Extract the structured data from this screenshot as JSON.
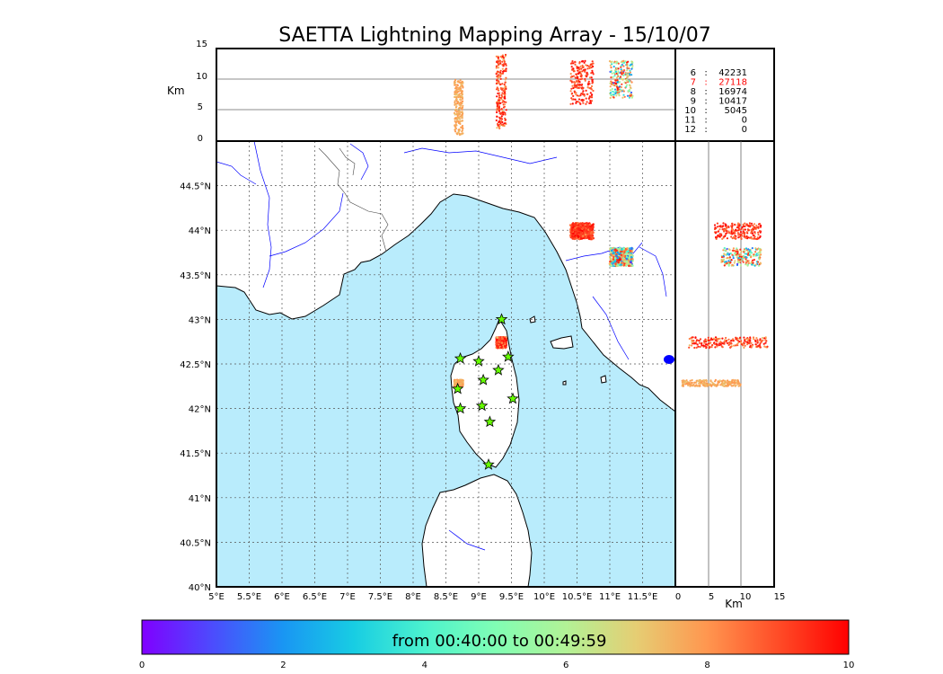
{
  "title": "SAETTA Lightning Mapping Array - 15/10/07",
  "altitude_panel": {
    "ylabel": "Km",
    "yticks": [
      "0",
      "5",
      "10",
      "15"
    ]
  },
  "side_panel": {
    "xlabel": "Km",
    "xticks": [
      "0",
      "5",
      "10",
      "15"
    ]
  },
  "map": {
    "lon_ticks": [
      "5°E",
      "5.5°E",
      "6°E",
      "6.5°E",
      "7°E",
      "7.5°E",
      "8°E",
      "8.5°E",
      "9°E",
      "9.5°E",
      "10°E",
      "10.5°E",
      "11°E",
      "11.5°E"
    ],
    "lat_ticks": [
      "40°N",
      "40.5°N",
      "41°N",
      "41.5°N",
      "42°N",
      "42.5°N",
      "43°N",
      "43.5°N",
      "44°N",
      "44.5°N"
    ],
    "lon_range": [
      5,
      12
    ],
    "lat_range": [
      40,
      45
    ],
    "sea_color": "#b9ecfc",
    "coast_color": "#000000",
    "river_color": "#0000ff",
    "stations": [
      {
        "lon": 9.35,
        "lat": 43.0
      },
      {
        "lon": 8.72,
        "lat": 42.56
      },
      {
        "lon": 9.0,
        "lat": 42.53
      },
      {
        "lon": 9.45,
        "lat": 42.58
      },
      {
        "lon": 9.3,
        "lat": 42.43
      },
      {
        "lon": 9.07,
        "lat": 42.32
      },
      {
        "lon": 8.68,
        "lat": 42.22
      },
      {
        "lon": 9.52,
        "lat": 42.11
      },
      {
        "lon": 9.05,
        "lat": 42.03
      },
      {
        "lon": 8.72,
        "lat": 42.0
      },
      {
        "lon": 9.17,
        "lat": 41.85
      },
      {
        "lon": 9.15,
        "lat": 41.37
      }
    ]
  },
  "counts": [
    {
      "label": "6",
      "value": "42231",
      "color": "#000000"
    },
    {
      "label": "7",
      "value": "27118",
      "color": "#ff0000"
    },
    {
      "label": "8",
      "value": "16974",
      "color": "#000000"
    },
    {
      "label": "9",
      "value": "10417",
      "color": "#000000"
    },
    {
      "label": "10",
      "value": "5045",
      "color": "#000000"
    },
    {
      "label": "11",
      "value": "0",
      "color": "#000000"
    },
    {
      "label": "12",
      "value": "0",
      "color": "#000000"
    }
  ],
  "colorbar": {
    "label": "from 00:40:00 to 00:49:59",
    "ticks": [
      "0",
      "2",
      "4",
      "6",
      "8",
      "10"
    ],
    "range": [
      0,
      10
    ]
  },
  "chart_data": {
    "type": "scatter",
    "title": "SAETTA Lightning Mapping Array - 15/10/07",
    "clusters": [
      {
        "lon": [
          8.63,
          8.76
        ],
        "lat": [
          42.25,
          42.32
        ],
        "alt": [
          1,
          10
        ],
        "t": [
          7,
          8
        ]
      },
      {
        "lon": [
          9.27,
          9.42
        ],
        "lat": [
          42.68,
          42.8
        ],
        "alt": [
          2,
          14
        ],
        "t": [
          7,
          10
        ]
      },
      {
        "lon": [
          10.4,
          10.75
        ],
        "lat": [
          43.9,
          44.08
        ],
        "alt": [
          6,
          13
        ],
        "t": [
          8,
          10
        ]
      },
      {
        "lon": [
          11.0,
          11.35
        ],
        "lat": [
          43.6,
          43.8
        ],
        "alt": [
          7,
          13
        ],
        "t": [
          0,
          10
        ]
      }
    ]
  }
}
